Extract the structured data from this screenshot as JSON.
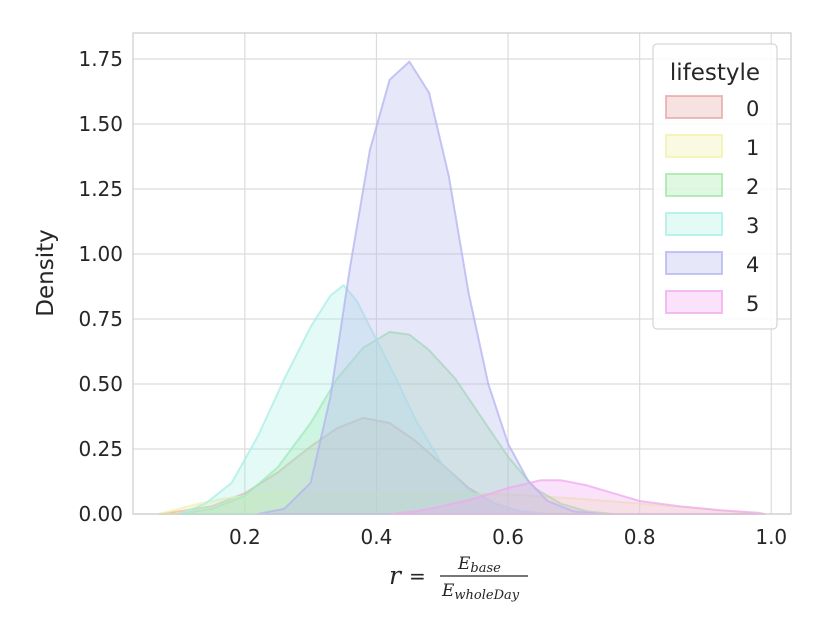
{
  "chart_data": {
    "type": "area",
    "title": "",
    "ylabel": "Density",
    "xlabel": {
      "lhs": "r",
      "eq": "=",
      "numerator": "E",
      "numerator_sub": "base",
      "denominator": "E",
      "denominator_sub": "wholeDay"
    },
    "xlim": [
      0.03,
      1.03
    ],
    "ylim": [
      0,
      1.85
    ],
    "xticks": [
      0.2,
      0.4,
      0.6,
      0.8,
      1.0
    ],
    "xtick_labels": [
      "0.2",
      "0.4",
      "0.6",
      "0.8",
      "1.0"
    ],
    "yticks": [
      0,
      0.25,
      0.5,
      0.75,
      1.0,
      1.25,
      1.5,
      1.75
    ],
    "ytick_labels": [
      "0.00",
      "0.25",
      "0.50",
      "0.75",
      "1.00",
      "1.25",
      "1.50",
      "1.75"
    ],
    "grid": true,
    "legend": {
      "title": "lifestyle",
      "placement": "top-right"
    },
    "series": [
      {
        "name": "0",
        "color": "#e7a6a6",
        "points": [
          [
            0.07,
            0.0
          ],
          [
            0.1,
            0.01
          ],
          [
            0.15,
            0.03
          ],
          [
            0.2,
            0.08
          ],
          [
            0.25,
            0.16
          ],
          [
            0.3,
            0.26
          ],
          [
            0.34,
            0.33
          ],
          [
            0.38,
            0.37
          ],
          [
            0.42,
            0.35
          ],
          [
            0.46,
            0.28
          ],
          [
            0.5,
            0.19
          ],
          [
            0.54,
            0.1
          ],
          [
            0.58,
            0.04
          ],
          [
            0.62,
            0.01
          ],
          [
            0.66,
            0.0
          ]
        ]
      },
      {
        "name": "1",
        "color": "#f1f1a8",
        "points": [
          [
            0.07,
            0.0
          ],
          [
            0.1,
            0.02
          ],
          [
            0.13,
            0.04
          ],
          [
            0.17,
            0.06
          ],
          [
            0.22,
            0.075
          ],
          [
            0.3,
            0.08
          ],
          [
            0.4,
            0.08
          ],
          [
            0.5,
            0.08
          ],
          [
            0.6,
            0.075
          ],
          [
            0.7,
            0.06
          ],
          [
            0.8,
            0.04
          ],
          [
            0.9,
            0.02
          ],
          [
            0.98,
            0.0
          ]
        ]
      },
      {
        "name": "2",
        "color": "#9fe7a3",
        "points": [
          [
            0.1,
            0.0
          ],
          [
            0.15,
            0.02
          ],
          [
            0.2,
            0.07
          ],
          [
            0.25,
            0.18
          ],
          [
            0.3,
            0.35
          ],
          [
            0.34,
            0.52
          ],
          [
            0.38,
            0.64
          ],
          [
            0.42,
            0.7
          ],
          [
            0.45,
            0.69
          ],
          [
            0.48,
            0.63
          ],
          [
            0.52,
            0.52
          ],
          [
            0.56,
            0.37
          ],
          [
            0.6,
            0.22
          ],
          [
            0.64,
            0.1
          ],
          [
            0.68,
            0.04
          ],
          [
            0.72,
            0.01
          ],
          [
            0.76,
            0.0
          ]
        ]
      },
      {
        "name": "3",
        "color": "#a9eee6",
        "points": [
          [
            0.1,
            0.0
          ],
          [
            0.14,
            0.04
          ],
          [
            0.18,
            0.12
          ],
          [
            0.22,
            0.3
          ],
          [
            0.26,
            0.52
          ],
          [
            0.3,
            0.72
          ],
          [
            0.33,
            0.84
          ],
          [
            0.35,
            0.88
          ],
          [
            0.37,
            0.82
          ],
          [
            0.4,
            0.67
          ],
          [
            0.43,
            0.52
          ],
          [
            0.46,
            0.36
          ],
          [
            0.5,
            0.19
          ],
          [
            0.54,
            0.09
          ],
          [
            0.58,
            0.04
          ],
          [
            0.62,
            0.01
          ],
          [
            0.66,
            0.0
          ]
        ]
      },
      {
        "name": "4",
        "color": "#b3b3f0",
        "points": [
          [
            0.22,
            0.0
          ],
          [
            0.26,
            0.02
          ],
          [
            0.3,
            0.12
          ],
          [
            0.33,
            0.45
          ],
          [
            0.36,
            0.95
          ],
          [
            0.39,
            1.4
          ],
          [
            0.42,
            1.67
          ],
          [
            0.45,
            1.74
          ],
          [
            0.48,
            1.62
          ],
          [
            0.51,
            1.3
          ],
          [
            0.54,
            0.85
          ],
          [
            0.57,
            0.5
          ],
          [
            0.6,
            0.27
          ],
          [
            0.63,
            0.13
          ],
          [
            0.66,
            0.05
          ],
          [
            0.7,
            0.01
          ],
          [
            0.74,
            0.0
          ]
        ]
      },
      {
        "name": "5",
        "color": "#f0a8ef",
        "points": [
          [
            0.42,
            0.0
          ],
          [
            0.46,
            0.01
          ],
          [
            0.5,
            0.03
          ],
          [
            0.55,
            0.06
          ],
          [
            0.6,
            0.1
          ],
          [
            0.65,
            0.13
          ],
          [
            0.68,
            0.13
          ],
          [
            0.72,
            0.11
          ],
          [
            0.76,
            0.08
          ],
          [
            0.8,
            0.05
          ],
          [
            0.86,
            0.03
          ],
          [
            0.92,
            0.015
          ],
          [
            0.98,
            0.005
          ],
          [
            0.99,
            0.0
          ]
        ]
      }
    ]
  }
}
